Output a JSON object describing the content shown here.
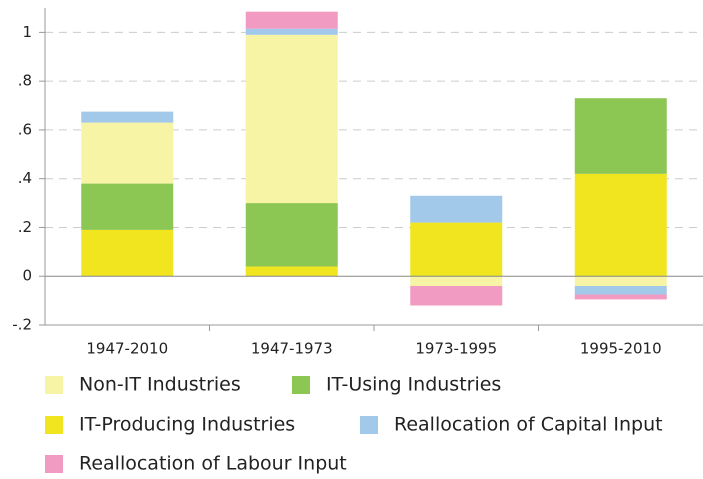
{
  "chart_data": {
    "type": "stacked_bar",
    "categories": [
      "1947-2010",
      "1947-1973",
      "1973-1995",
      "1995-2010"
    ],
    "series": [
      {
        "name": "Non-IT Industries",
        "color": "#f8f4a6",
        "values": [
          0.25,
          0.69,
          -0.04,
          -0.04
        ]
      },
      {
        "name": "IT-Using Industries",
        "color": "#8cc653",
        "values": [
          0.19,
          0.26,
          0,
          0.31
        ]
      },
      {
        "name": "IT-Producing Industries",
        "color": "#f0e51e",
        "values": [
          0.19,
          0.04,
          0.22,
          0.42
        ]
      },
      {
        "name": "Reallocation of Capital Input",
        "color": "#a3c9ea",
        "values": [
          0.045,
          0.025,
          0.11,
          -0.035
        ]
      },
      {
        "name": "Reallocation of Labour Input",
        "color": "#f19ac2",
        "values": [
          0,
          0.07,
          -0.08,
          -0.02
        ]
      }
    ],
    "ylim": [
      -0.2,
      1.1
    ],
    "yticks": [
      {
        "value": -0.2,
        "label": "-.2"
      },
      0,
      {
        "value": 0.2,
        "label": ".2"
      },
      {
        "value": 0.4,
        "label": ".4"
      },
      {
        "value": 0.6,
        "label": ".6"
      },
      {
        "value": 0.8,
        "label": ".8"
      },
      1
    ],
    "grid": true
  }
}
